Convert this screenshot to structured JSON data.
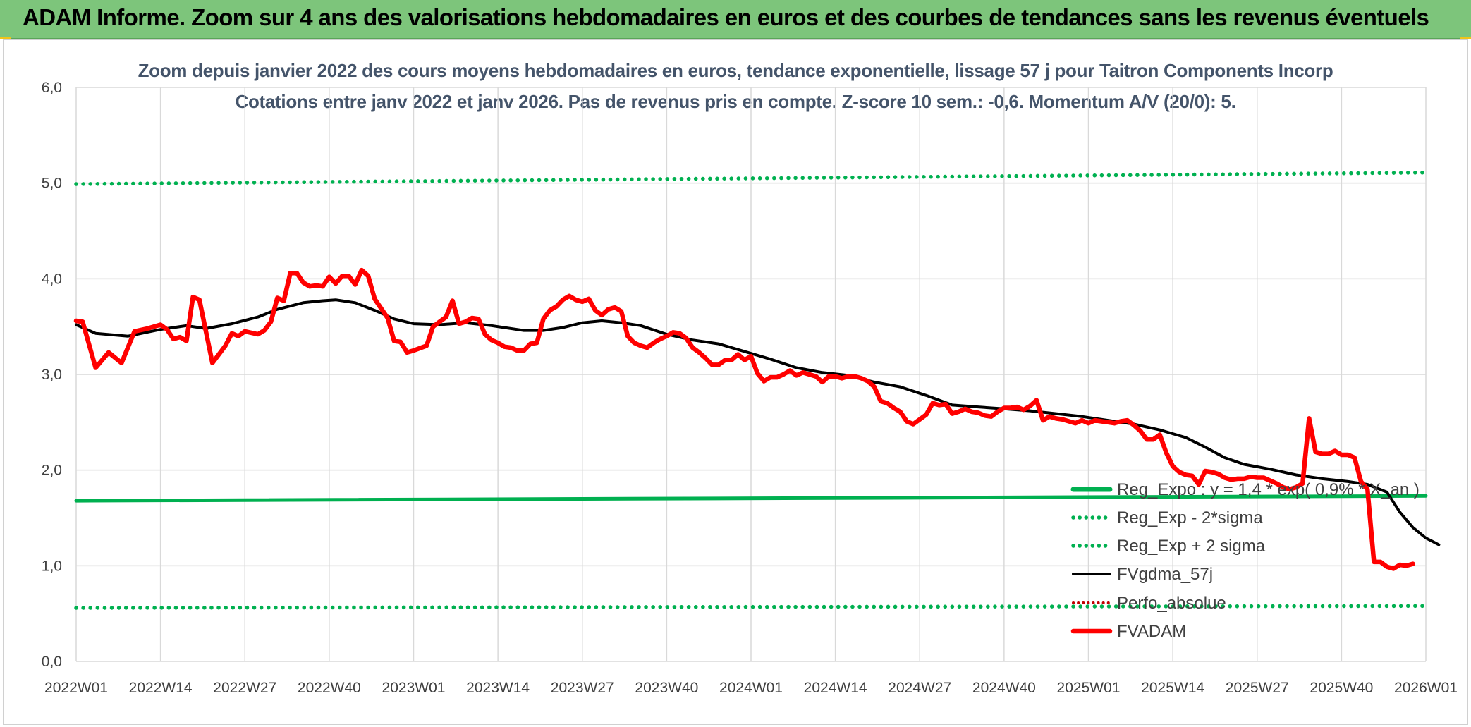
{
  "header": {
    "title": "ADAM Informe. Zoom sur 4 ans des valorisations hebdomadaires en euros et des courbes de tendances sans les revenus éventuels"
  },
  "colors": {
    "banner": "#7dc57b",
    "reg_expo": "#00b050",
    "fvgdma": "#000000",
    "fvadam": "#ff0000",
    "perfo": "#c00000",
    "grid": "#d9d9d9"
  },
  "chart_data": {
    "type": "line",
    "title_line1": "Zoom depuis janvier 2022 des cours moyens hebdomadaires en euros, tendance exponentielle, lissage 57 j pour Taitron Components Incorp",
    "title_line2": "Cotations entre janv 2022 et janv 2026. Pas de revenus pris en compte. Z-score 10 sem.: -0,6. Momentum A/V (20/0): 5.",
    "ylim": [
      0,
      6
    ],
    "yticks": [
      "0,0",
      "1,0",
      "2,0",
      "3,0",
      "4,0",
      "5,0",
      "6,0"
    ],
    "xticks": [
      "2022W01",
      "2022W14",
      "2022W27",
      "2022W40",
      "2023W01",
      "2023W14",
      "2023W27",
      "2023W40",
      "2024W01",
      "2024W14",
      "2024W27",
      "2024W40",
      "2025W01",
      "2025W14",
      "2025W27",
      "2025W40",
      "2026W01"
    ],
    "x_range_weeks": [
      0,
      208
    ],
    "legend": {
      "reg_expo": "Reg_Expo : y = 1,4 * exp( 0,9% * X_an )",
      "reg_minus": "Reg_Exp - 2*sigma",
      "reg_plus": "Reg_Exp + 2 sigma",
      "fvgdma": "FVgdma_57j",
      "perfo": "Perfo_absolue",
      "fvadam": "FVADAM"
    },
    "series": [
      {
        "name": "Reg_Expo",
        "start": 1.68,
        "end": 1.73
      },
      {
        "name": "Reg_Exp - 2*sigma",
        "start": 0.56,
        "end": 0.58
      },
      {
        "name": "Reg_Exp + 2 sigma",
        "start": 4.99,
        "end": 5.11
      },
      {
        "name": "FVgdma_57j",
        "points": [
          [
            0,
            3.52
          ],
          [
            3,
            3.43
          ],
          [
            8,
            3.4
          ],
          [
            13,
            3.47
          ],
          [
            17,
            3.51
          ],
          [
            20,
            3.48
          ],
          [
            24,
            3.53
          ],
          [
            28,
            3.6
          ],
          [
            31,
            3.68
          ],
          [
            35,
            3.75
          ],
          [
            38,
            3.77
          ],
          [
            40,
            3.78
          ],
          [
            43,
            3.75
          ],
          [
            46,
            3.67
          ],
          [
            49,
            3.58
          ],
          [
            52,
            3.53
          ],
          [
            56,
            3.52
          ],
          [
            60,
            3.54
          ],
          [
            64,
            3.51
          ],
          [
            69,
            3.46
          ],
          [
            72,
            3.46
          ],
          [
            75,
            3.49
          ],
          [
            78,
            3.54
          ],
          [
            81,
            3.56
          ],
          [
            84,
            3.54
          ],
          [
            87,
            3.51
          ],
          [
            91,
            3.42
          ],
          [
            95,
            3.36
          ],
          [
            99,
            3.32
          ],
          [
            103,
            3.24
          ],
          [
            107,
            3.16
          ],
          [
            111,
            3.07
          ],
          [
            115,
            3.02
          ],
          [
            119,
            2.99
          ],
          [
            123,
            2.92
          ],
          [
            127,
            2.87
          ],
          [
            131,
            2.78
          ],
          [
            135,
            2.68
          ],
          [
            139,
            2.66
          ],
          [
            143,
            2.64
          ],
          [
            147,
            2.62
          ],
          [
            151,
            2.59
          ],
          [
            155,
            2.56
          ],
          [
            159,
            2.52
          ],
          [
            163,
            2.48
          ],
          [
            167,
            2.42
          ],
          [
            171,
            2.34
          ],
          [
            174,
            2.24
          ],
          [
            177,
            2.13
          ],
          [
            180,
            2.06
          ],
          [
            184,
            2.01
          ],
          [
            188,
            1.95
          ],
          [
            192,
            1.91
          ],
          [
            196,
            1.88
          ],
          [
            199,
            1.85
          ],
          [
            202,
            1.77
          ],
          [
            204,
            1.56
          ],
          [
            206,
            1.4
          ],
          [
            208,
            1.29
          ],
          [
            210,
            1.22
          ]
        ]
      },
      {
        "name": "FVADAM",
        "points": [
          [
            0,
            3.56
          ],
          [
            1,
            3.55
          ],
          [
            3,
            3.07
          ],
          [
            5,
            3.23
          ],
          [
            7,
            3.12
          ],
          [
            9,
            3.45
          ],
          [
            11,
            3.48
          ],
          [
            13,
            3.52
          ],
          [
            14,
            3.47
          ],
          [
            15,
            3.37
          ],
          [
            16,
            3.39
          ],
          [
            17,
            3.35
          ],
          [
            18,
            3.81
          ],
          [
            19,
            3.78
          ],
          [
            21,
            3.12
          ],
          [
            23,
            3.3
          ],
          [
            24,
            3.43
          ],
          [
            25,
            3.4
          ],
          [
            26,
            3.45
          ],
          [
            28,
            3.42
          ],
          [
            29,
            3.46
          ],
          [
            30,
            3.55
          ],
          [
            31,
            3.8
          ],
          [
            32,
            3.77
          ],
          [
            33,
            4.06
          ],
          [
            34,
            4.06
          ],
          [
            35,
            3.96
          ],
          [
            36,
            3.92
          ],
          [
            37,
            3.93
          ],
          [
            38,
            3.92
          ],
          [
            39,
            4.02
          ],
          [
            40,
            3.95
          ],
          [
            41,
            4.03
          ],
          [
            42,
            4.03
          ],
          [
            43,
            3.94
          ],
          [
            44,
            4.09
          ],
          [
            45,
            4.03
          ],
          [
            46,
            3.79
          ],
          [
            48,
            3.59
          ],
          [
            49,
            3.35
          ],
          [
            50,
            3.34
          ],
          [
            51,
            3.23
          ],
          [
            52,
            3.25
          ],
          [
            54,
            3.3
          ],
          [
            55,
            3.5
          ],
          [
            56,
            3.55
          ],
          [
            57,
            3.6
          ],
          [
            58,
            3.77
          ],
          [
            59,
            3.53
          ],
          [
            60,
            3.55
          ],
          [
            61,
            3.59
          ],
          [
            62,
            3.58
          ],
          [
            63,
            3.42
          ],
          [
            64,
            3.36
          ],
          [
            65,
            3.33
          ],
          [
            66,
            3.29
          ],
          [
            67,
            3.28
          ],
          [
            68,
            3.25
          ],
          [
            69,
            3.25
          ],
          [
            70,
            3.32
          ],
          [
            71,
            3.33
          ],
          [
            72,
            3.58
          ],
          [
            73,
            3.67
          ],
          [
            74,
            3.71
          ],
          [
            75,
            3.78
          ],
          [
            76,
            3.82
          ],
          [
            77,
            3.78
          ],
          [
            78,
            3.76
          ],
          [
            79,
            3.79
          ],
          [
            80,
            3.67
          ],
          [
            81,
            3.62
          ],
          [
            82,
            3.68
          ],
          [
            83,
            3.7
          ],
          [
            84,
            3.66
          ],
          [
            85,
            3.4
          ],
          [
            86,
            3.33
          ],
          [
            87,
            3.3
          ],
          [
            88,
            3.28
          ],
          [
            89,
            3.33
          ],
          [
            90,
            3.37
          ],
          [
            91,
            3.4
          ],
          [
            92,
            3.44
          ],
          [
            93,
            3.43
          ],
          [
            94,
            3.38
          ],
          [
            95,
            3.28
          ],
          [
            96,
            3.23
          ],
          [
            97,
            3.17
          ],
          [
            98,
            3.1
          ],
          [
            99,
            3.1
          ],
          [
            100,
            3.15
          ],
          [
            101,
            3.15
          ],
          [
            102,
            3.21
          ],
          [
            103,
            3.15
          ],
          [
            104,
            3.19
          ],
          [
            105,
            3.01
          ],
          [
            106,
            2.93
          ],
          [
            107,
            2.97
          ],
          [
            108,
            2.97
          ],
          [
            109,
            3.0
          ],
          [
            110,
            3.04
          ],
          [
            111,
            2.99
          ],
          [
            112,
            3.02
          ],
          [
            113,
            3.0
          ],
          [
            114,
            2.98
          ],
          [
            115,
            2.92
          ],
          [
            116,
            2.98
          ],
          [
            117,
            2.98
          ],
          [
            118,
            2.96
          ],
          [
            119,
            2.98
          ],
          [
            120,
            2.98
          ],
          [
            121,
            2.96
          ],
          [
            122,
            2.93
          ],
          [
            123,
            2.87
          ],
          [
            124,
            2.72
          ],
          [
            125,
            2.7
          ],
          [
            126,
            2.65
          ],
          [
            127,
            2.61
          ],
          [
            128,
            2.51
          ],
          [
            129,
            2.48
          ],
          [
            130,
            2.53
          ],
          [
            131,
            2.58
          ],
          [
            132,
            2.7
          ],
          [
            133,
            2.68
          ],
          [
            134,
            2.69
          ],
          [
            135,
            2.59
          ],
          [
            136,
            2.61
          ],
          [
            137,
            2.64
          ],
          [
            138,
            2.61
          ],
          [
            139,
            2.6
          ],
          [
            140,
            2.57
          ],
          [
            141,
            2.56
          ],
          [
            142,
            2.61
          ],
          [
            143,
            2.65
          ],
          [
            144,
            2.65
          ],
          [
            145,
            2.66
          ],
          [
            146,
            2.63
          ],
          [
            147,
            2.67
          ],
          [
            148,
            2.73
          ],
          [
            149,
            2.52
          ],
          [
            150,
            2.56
          ],
          [
            151,
            2.54
          ],
          [
            152,
            2.53
          ],
          [
            153,
            2.51
          ],
          [
            154,
            2.49
          ],
          [
            155,
            2.52
          ],
          [
            156,
            2.49
          ],
          [
            157,
            2.52
          ],
          [
            158,
            2.51
          ],
          [
            159,
            2.5
          ],
          [
            160,
            2.49
          ],
          [
            161,
            2.51
          ],
          [
            162,
            2.52
          ],
          [
            163,
            2.47
          ],
          [
            164,
            2.41
          ],
          [
            165,
            2.32
          ],
          [
            166,
            2.32
          ],
          [
            167,
            2.37
          ],
          [
            168,
            2.18
          ],
          [
            169,
            2.04
          ],
          [
            170,
            1.98
          ],
          [
            171,
            1.95
          ],
          [
            172,
            1.94
          ],
          [
            173,
            1.85
          ],
          [
            174,
            1.99
          ],
          [
            175,
            1.98
          ],
          [
            176,
            1.96
          ],
          [
            177,
            1.92
          ],
          [
            178,
            1.9
          ],
          [
            179,
            1.91
          ],
          [
            180,
            1.91
          ],
          [
            181,
            1.93
          ],
          [
            182,
            1.92
          ],
          [
            183,
            1.92
          ],
          [
            184,
            1.89
          ],
          [
            185,
            1.86
          ],
          [
            186,
            1.82
          ],
          [
            187,
            1.8
          ],
          [
            188,
            1.82
          ],
          [
            189,
            1.86
          ],
          [
            190,
            2.54
          ],
          [
            191,
            2.19
          ],
          [
            192,
            2.17
          ],
          [
            193,
            2.17
          ],
          [
            194,
            2.2
          ],
          [
            195,
            2.16
          ],
          [
            196,
            2.16
          ],
          [
            197,
            2.13
          ],
          [
            198,
            1.88
          ],
          [
            199,
            1.8
          ],
          [
            200,
            1.04
          ],
          [
            201,
            1.04
          ],
          [
            202,
            0.99
          ],
          [
            203,
            0.97
          ],
          [
            204,
            1.01
          ],
          [
            205,
            1.0
          ],
          [
            206,
            1.02
          ]
        ]
      }
    ]
  }
}
